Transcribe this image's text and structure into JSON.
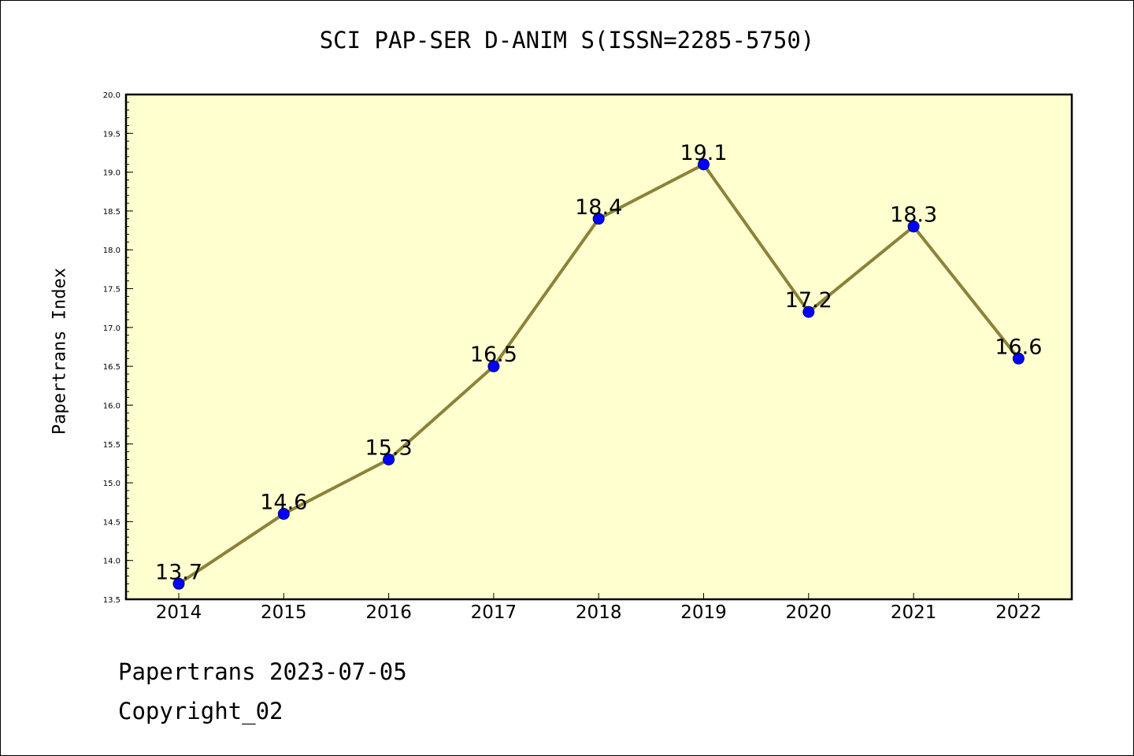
{
  "chart_data": {
    "type": "line",
    "title": "SCI PAP-SER D-ANIM S(ISSN=2285-5750)",
    "xlabel": "",
    "ylabel": "Papertrans Index",
    "categories": [
      "2014",
      "2015",
      "2016",
      "2017",
      "2018",
      "2019",
      "2020",
      "2021",
      "2022"
    ],
    "series": [
      {
        "values": [
          13.7,
          14.6,
          15.3,
          16.5,
          18.4,
          19.1,
          17.2,
          18.3,
          16.6
        ],
        "data_labels": [
          "13.7",
          "14.6",
          "15.3",
          "16.5",
          "18.4",
          "19.1",
          "17.2",
          "18.3",
          "16.6"
        ]
      }
    ],
    "ylim": [
      13.5,
      20.0
    ],
    "yticks": [
      "13.5",
      "14.0",
      "14.5",
      "15.0",
      "15.5",
      "16.0",
      "16.5",
      "17.0",
      "17.5",
      "18.0",
      "18.5",
      "19.0",
      "19.5",
      "20.0"
    ],
    "grid": false,
    "legend": "none",
    "colors": {
      "plot_background": "#ffffd0",
      "line": "#8c8238",
      "marker": "#0000ff",
      "axes": "#000000"
    }
  },
  "footer": {
    "line1": "Papertrans 2023-07-05",
    "line2": "Copyright_02"
  }
}
